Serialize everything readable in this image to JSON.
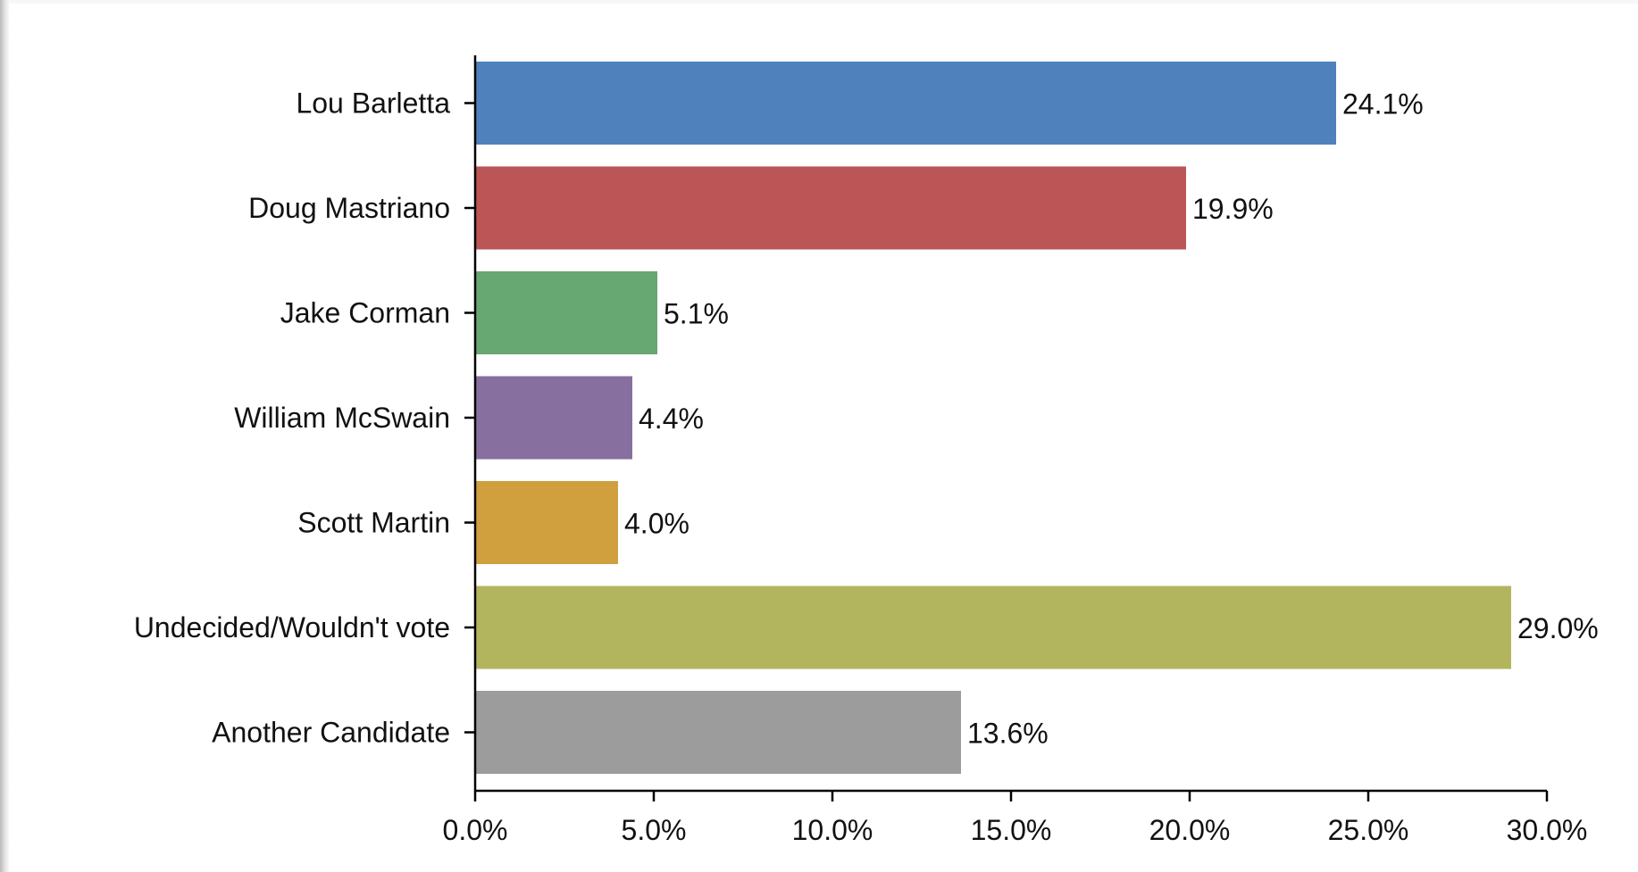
{
  "chart_data": {
    "type": "bar",
    "orientation": "horizontal",
    "categories": [
      "Lou Barletta",
      "Doug Mastriano",
      "Jake Corman",
      "William McSwain",
      "Scott Martin",
      "Undecided/Wouldn't vote",
      "Another Candidate"
    ],
    "values": [
      24.1,
      19.9,
      5.1,
      4.4,
      4.0,
      29.0,
      13.6
    ],
    "value_labels": [
      "24.1%",
      "19.9%",
      "5.1%",
      "4.4%",
      "4.0%",
      "29.0%",
      "13.6%"
    ],
    "colors": [
      "#4f81bd",
      "#bc5656",
      "#67a772",
      "#876fa0",
      "#d09f3e",
      "#b2b55e",
      "#9c9c9c"
    ],
    "xlim": [
      0,
      30
    ],
    "xticks": [
      0,
      5,
      10,
      15,
      20,
      25,
      30
    ],
    "xtick_labels": [
      "0.0%",
      "5.0%",
      "10.0%",
      "15.0%",
      "20.0%",
      "25.0%",
      "30.0%"
    ],
    "title": "",
    "xlabel": "",
    "ylabel": "",
    "grid": false,
    "legend": "none"
  }
}
